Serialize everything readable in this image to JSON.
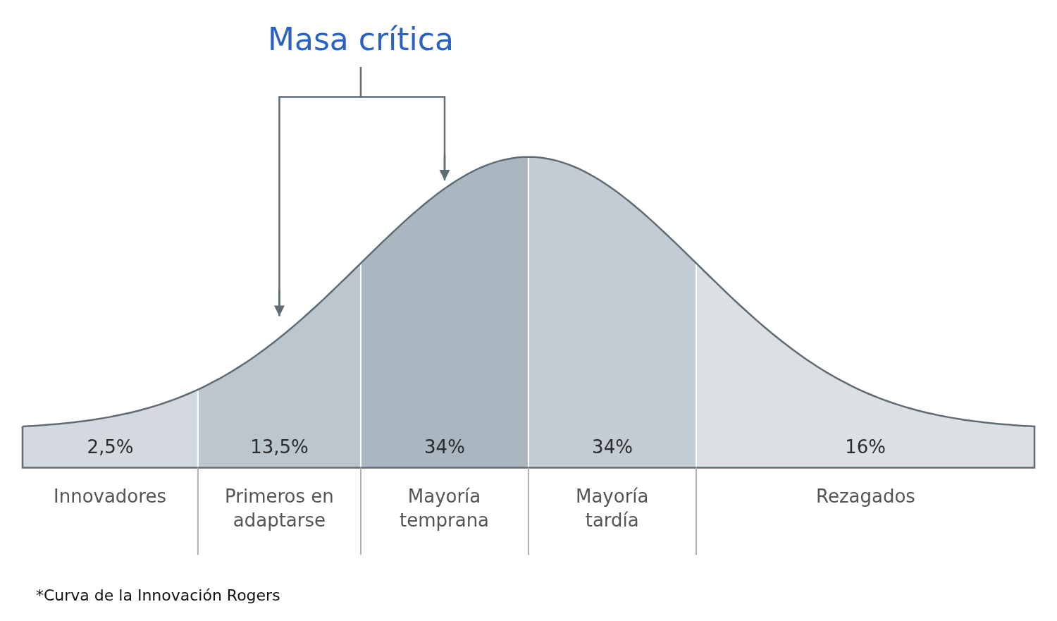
{
  "chart_data": {
    "type": "other",
    "title": "Masa crítica",
    "categories": [
      "Innovadores",
      "Primeros en adaptarse",
      "Mayoría temprana",
      "Mayoría tardía",
      "Rezagados"
    ],
    "values": [
      2.5,
      13.5,
      34,
      34,
      16
    ],
    "value_labels": [
      "2,5%",
      "13,5%",
      "34%",
      "34%",
      "16%"
    ],
    "colors": [
      "#d3d9de",
      "#bcc6ce",
      "#aab6c0",
      "#c3ccd4",
      "#dce0e4"
    ],
    "annotations": [
      "*Curva de la Innovación Rogers"
    ]
  }
}
